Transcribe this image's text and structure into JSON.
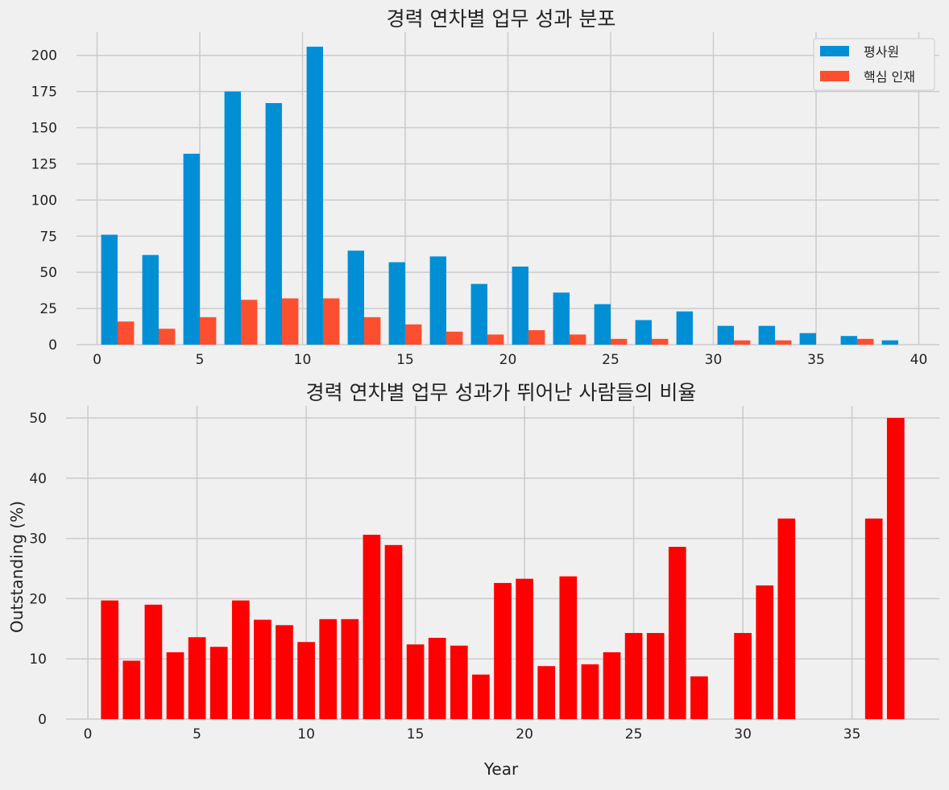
{
  "colors": {
    "background": "#f0f0f0",
    "grid": "#cbcbcb",
    "regular": "#008fd5",
    "key_talent": "#fc4f30",
    "ratio": "#ff0000"
  },
  "chart_data": [
    {
      "type": "bar",
      "title": "경력 연차별 업무 성과 분포",
      "xlabel": "",
      "ylabel": "",
      "xlim": [
        -1,
        41
      ],
      "ylim": [
        0,
        216
      ],
      "xticks": [
        0,
        5,
        10,
        15,
        20,
        25,
        30,
        35,
        40
      ],
      "yticks": [
        0,
        25,
        50,
        75,
        100,
        125,
        150,
        175,
        200
      ],
      "grid": true,
      "legend_position": "top-right",
      "bins": [
        0,
        2,
        4,
        6,
        8,
        10,
        12,
        14,
        16,
        18,
        20,
        22,
        24,
        26,
        28,
        30,
        32,
        34,
        36,
        38
      ],
      "bin_width": 2,
      "series": [
        {
          "name": "평사원",
          "values": [
            76,
            62,
            132,
            175,
            167,
            206,
            65,
            57,
            61,
            42,
            54,
            36,
            28,
            17,
            23,
            13,
            13,
            8,
            6,
            3
          ]
        },
        {
          "name": "핵심 인재",
          "values": [
            16,
            11,
            19,
            31,
            32,
            32,
            19,
            14,
            9,
            7,
            10,
            7,
            4,
            4,
            0,
            3,
            3,
            0,
            4,
            0
          ]
        }
      ]
    },
    {
      "type": "bar",
      "title": "경력 연차별 업무 성과가 뛰어난 사람들의 비율",
      "xlabel": "Year",
      "ylabel": "Outstanding (%)",
      "xlim": [
        -1,
        39
      ],
      "ylim": [
        0,
        52
      ],
      "xticks": [
        0,
        5,
        10,
        15,
        20,
        25,
        30,
        35
      ],
      "yticks": [
        0,
        10,
        20,
        30,
        40,
        50
      ],
      "grid": true,
      "x": [
        1,
        2,
        3,
        4,
        5,
        6,
        7,
        8,
        9,
        10,
        11,
        12,
        13,
        14,
        15,
        16,
        17,
        18,
        19,
        20,
        21,
        22,
        23,
        24,
        25,
        26,
        27,
        28,
        30,
        31,
        32,
        36,
        37
      ],
      "values": [
        19.7,
        9.7,
        19.0,
        11.1,
        13.6,
        12.0,
        19.7,
        16.5,
        15.6,
        12.8,
        16.6,
        16.6,
        30.6,
        28.9,
        12.4,
        13.5,
        12.2,
        7.4,
        22.6,
        23.3,
        8.8,
        23.7,
        9.1,
        11.1,
        14.3,
        14.3,
        28.6,
        7.1,
        14.3,
        22.2,
        33.3,
        33.3,
        50.0
      ]
    }
  ]
}
